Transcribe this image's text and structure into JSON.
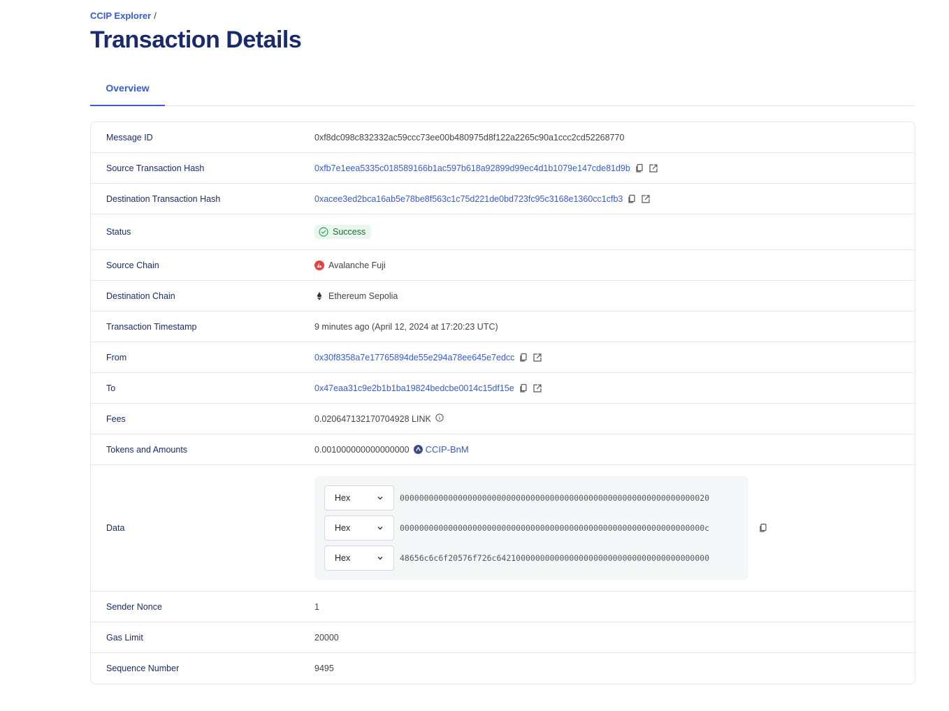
{
  "breadcrumb": {
    "root": "CCIP Explorer",
    "sep": "/"
  },
  "page_title": "Transaction Details",
  "tabs": [
    {
      "label": "Overview"
    }
  ],
  "rows": {
    "message_id": {
      "label": "Message ID",
      "value": "0xf8dc098c832332ac59ccc73ee00b480975d8f122a2265c90a1ccc2cd52268770"
    },
    "source_tx": {
      "label": "Source Transaction Hash",
      "value": "0xfb7e1eea5335c018589166b1ac597b618a92899d99ec4d1b1079e147cde81d9b"
    },
    "dest_tx": {
      "label": "Destination Transaction Hash",
      "value": "0xacee3ed2bca16ab5e78be8f563c1c75d221de0bd723fc95c3168e1360cc1cfb3"
    },
    "status": {
      "label": "Status",
      "value": "Success"
    },
    "source_chain": {
      "label": "Source Chain",
      "value": "Avalanche Fuji"
    },
    "dest_chain": {
      "label": "Destination Chain",
      "value": "Ethereum Sepolia"
    },
    "timestamp": {
      "label": "Transaction Timestamp",
      "value": "9 minutes ago (April 12, 2024 at 17:20:23 UTC)"
    },
    "from": {
      "label": "From",
      "value": "0x30f8358a7e17765894de55e294a78ee645e7edcc"
    },
    "to": {
      "label": "To",
      "value": "0x47eaa31c9e2b1b1ba19824bedcbe0014c15df15e"
    },
    "fees": {
      "label": "Fees",
      "value": "0.020647132170704928 LINK"
    },
    "tokens": {
      "label": "Tokens and Amounts",
      "amount": "0.001000000000000000",
      "token": "CCIP-BnM"
    },
    "data": {
      "label": "Data",
      "items": [
        {
          "format": "Hex",
          "value": "0000000000000000000000000000000000000000000000000000000000000020"
        },
        {
          "format": "Hex",
          "value": "000000000000000000000000000000000000000000000000000000000000000c"
        },
        {
          "format": "Hex",
          "value": "48656c6c6f20576f726c64210000000000000000000000000000000000000000"
        }
      ]
    },
    "nonce": {
      "label": "Sender Nonce",
      "value": "1"
    },
    "gas": {
      "label": "Gas Limit",
      "value": "20000"
    },
    "seq": {
      "label": "Sequence Number",
      "value": "9495"
    }
  },
  "colors": {
    "accent": "#375bd2",
    "title": "#1a2b6b",
    "success": "#1a6b35",
    "avalanche": "#e84142"
  }
}
